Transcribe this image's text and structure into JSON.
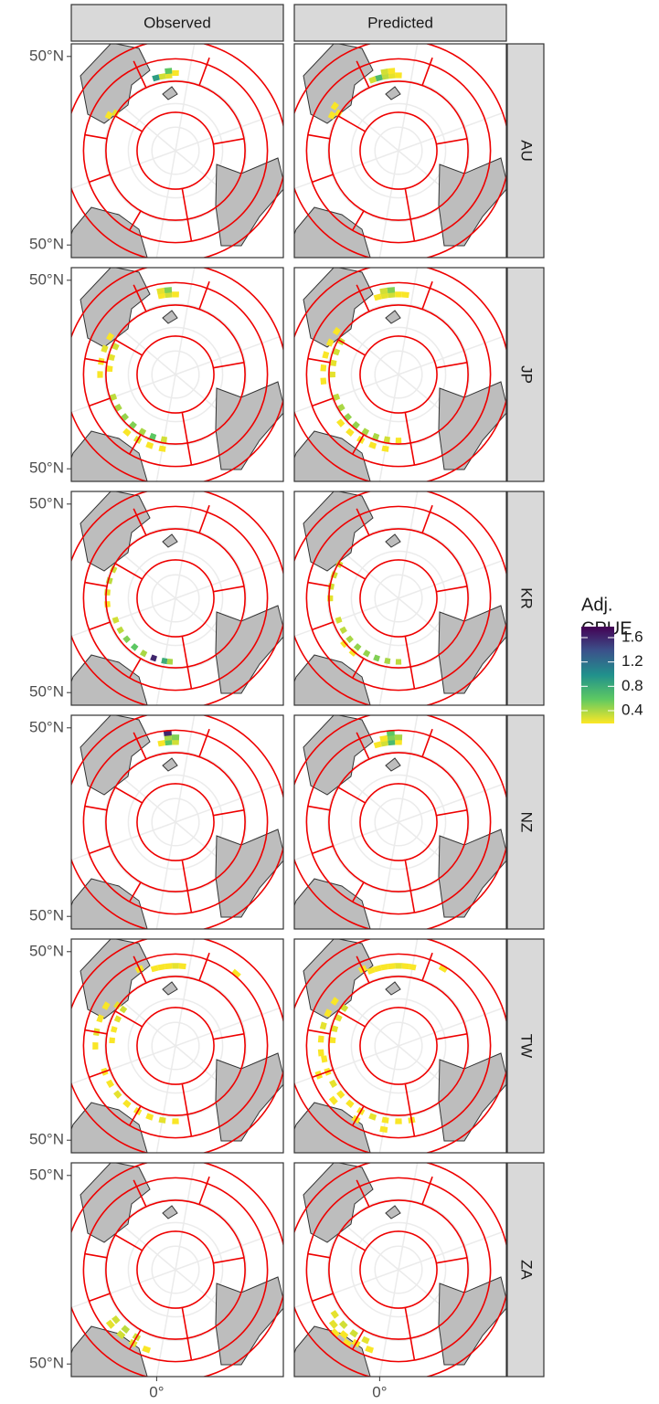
{
  "chart_data": {
    "type": "tile-map",
    "columns": [
      "Observed",
      "Predicted"
    ],
    "rows": [
      "AU",
      "JP",
      "KR",
      "NZ",
      "TW",
      "ZA"
    ],
    "xticks": [
      {
        "value": 0,
        "label": "0°"
      }
    ],
    "yticks": [
      {
        "value": 50,
        "label": "50°N"
      }
    ],
    "legend_title": [
      "Adj.",
      "CPUE"
    ],
    "clim": [
      0.19,
      1.78
    ],
    "cticks": [
      0.4,
      0.8,
      1.2,
      1.6
    ],
    "colors": [
      "#fde725",
      "#5ec962",
      "#21918c",
      "#3b528b",
      "#440154"
    ],
    "panels": [
      [
        {
          "lon": [
            195,
            200,
            205,
            190,
            195,
            252,
            248
          ],
          "lat": [
            58,
            58,
            58,
            57,
            56,
            58,
            60
          ],
          "values": [
            0.25,
            0.3,
            0.9,
            0.2,
            0.6,
            0.2,
            0.25
          ]
        },
        {
          "lon": [
            190,
            195,
            200,
            205,
            210,
            195,
            200,
            252,
            248,
            245
          ],
          "lat": [
            58,
            58,
            58,
            58,
            58,
            56,
            56,
            58,
            60,
            57
          ],
          "values": [
            0.2,
            0.25,
            0.35,
            0.7,
            0.3,
            0.2,
            0.3,
            0.2,
            0.2,
            0.2
          ]
        }
      ],
      [
        {
          "lon": [
            190,
            195,
            200,
            195,
            200,
            250,
            260,
            270,
            280,
            255,
            265,
            275,
            300,
            310,
            320,
            330,
            340,
            350,
            0,
            330,
            340,
            350,
            0
          ],
          "lat": [
            56,
            56,
            56,
            54,
            54,
            58,
            58,
            58,
            58,
            62,
            62,
            62,
            62,
            62,
            62,
            62,
            62,
            62,
            62,
            58,
            58,
            58,
            58
          ],
          "values": [
            0.2,
            0.3,
            0.2,
            0.5,
            0.25,
            0.2,
            0.25,
            0.2,
            0.2,
            0.3,
            0.25,
            0.2,
            0.35,
            0.4,
            0.45,
            0.5,
            0.4,
            0.6,
            0.3,
            0.2,
            0.25,
            0.2,
            0.2
          ]
        },
        {
          "lon": [
            185,
            190,
            195,
            200,
            205,
            195,
            200,
            245,
            255,
            265,
            275,
            285,
            250,
            260,
            270,
            280,
            300,
            310,
            320,
            330,
            340,
            350,
            0,
            10,
            320,
            330,
            340,
            350,
            0
          ],
          "lat": [
            56,
            56,
            56,
            56,
            56,
            54,
            54,
            58,
            58,
            58,
            58,
            58,
            62,
            62,
            62,
            62,
            62,
            62,
            62,
            62,
            62,
            62,
            62,
            62,
            58,
            58,
            58,
            58,
            58
          ],
          "values": [
            0.2,
            0.2,
            0.3,
            0.25,
            0.2,
            0.5,
            0.3,
            0.2,
            0.2,
            0.2,
            0.2,
            0.2,
            0.3,
            0.3,
            0.25,
            0.25,
            0.35,
            0.4,
            0.45,
            0.45,
            0.4,
            0.4,
            0.3,
            0.2,
            0.2,
            0.2,
            0.2,
            0.2,
            0.2
          ]
        }
      ],
      [
        {
          "lon": [
            255,
            265,
            275,
            285,
            300,
            310,
            320,
            330,
            340,
            350,
            0,
            5
          ],
          "lat": [
            61,
            61,
            61,
            61,
            63,
            63,
            63,
            63,
            63,
            63,
            63,
            63
          ],
          "values": [
            0.3,
            0.35,
            0.25,
            0.2,
            0.3,
            0.35,
            0.5,
            0.6,
            0.4,
            1.6,
            0.8,
            0.4
          ]
        },
        {
          "lon": [
            250,
            260,
            270,
            280,
            300,
            310,
            320,
            330,
            340,
            350,
            0,
            10,
            320,
            330
          ],
          "lat": [
            61,
            61,
            61,
            61,
            63,
            63,
            63,
            63,
            63,
            63,
            63,
            63,
            60,
            60
          ],
          "values": [
            0.3,
            0.3,
            0.3,
            0.25,
            0.3,
            0.35,
            0.4,
            0.45,
            0.45,
            0.5,
            0.4,
            0.35,
            0.2,
            0.2
          ]
        }
      ],
      [
        {
          "lon": [
            190,
            195,
            200,
            190,
            195,
            195
          ],
          "lat": [
            56,
            56,
            56,
            54,
            54,
            52
          ],
          "values": [
            0.3,
            0.6,
            0.2,
            0.5,
            0.4,
            1.6
          ]
        },
        {
          "lon": [
            190,
            195,
            200,
            205,
            190,
            195,
            200,
            195
          ],
          "lat": [
            56,
            56,
            56,
            56,
            54,
            54,
            54,
            52
          ],
          "values": [
            0.2,
            0.7,
            0.3,
            0.2,
            0.4,
            0.5,
            0.2,
            0.6
          ]
        }
      ],
      [
        {
          "lon": [
            185,
            190,
            195,
            200,
            205,
            215,
            245,
            250,
            260,
            270,
            280,
            245,
            255,
            265,
            275,
            300,
            310,
            320,
            330,
            340,
            350,
            0,
            10,
            150
          ],
          "lat": [
            56,
            56,
            56,
            56,
            56,
            54,
            60,
            56,
            56,
            56,
            56,
            63,
            63,
            63,
            63,
            58,
            58,
            58,
            58,
            58,
            58,
            58,
            58,
            50
          ],
          "values": [
            0.2,
            0.25,
            0.2,
            0.2,
            0.2,
            0.2,
            0.25,
            0.2,
            0.2,
            0.25,
            0.2,
            0.3,
            0.25,
            0.2,
            0.2,
            0.2,
            0.2,
            0.25,
            0.2,
            0.2,
            0.2,
            0.25,
            0.2,
            0.2
          ]
        },
        {
          "lon": [
            180,
            185,
            190,
            195,
            200,
            205,
            210,
            215,
            160,
            245,
            255,
            265,
            275,
            285,
            245,
            255,
            265,
            275,
            290,
            300,
            310,
            320,
            330,
            340,
            350,
            0,
            10,
            20,
            300,
            320,
            340,
            0
          ],
          "lat": [
            56,
            56,
            56,
            56,
            56,
            56,
            56,
            54,
            52,
            57,
            57,
            57,
            57,
            57,
            62,
            62,
            62,
            62,
            58,
            58,
            58,
            58,
            58,
            58,
            58,
            58,
            58,
            58,
            54,
            54,
            54,
            54
          ],
          "values": [
            0.2,
            0.2,
            0.25,
            0.2,
            0.2,
            0.2,
            0.2,
            0.2,
            0.2,
            0.2,
            0.2,
            0.25,
            0.2,
            0.2,
            0.3,
            0.25,
            0.25,
            0.2,
            0.2,
            0.2,
            0.25,
            0.2,
            0.2,
            0.2,
            0.25,
            0.2,
            0.2,
            0.2,
            0.2,
            0.2,
            0.2,
            0.2
          ]
        }
      ],
      [
        {
          "lon": [
            320,
            330,
            340,
            320,
            330,
            340,
            350
          ],
          "lat": [
            57,
            57,
            57,
            54,
            54,
            54,
            54
          ],
          "values": [
            0.3,
            0.35,
            0.3,
            0.25,
            0.3,
            0.25,
            0.2
          ]
        },
        {
          "lon": [
            315,
            325,
            335,
            345,
            320,
            330,
            340,
            350,
            325,
            335
          ],
          "lat": [
            57,
            57,
            57,
            57,
            54,
            54,
            54,
            54,
            52,
            52
          ],
          "values": [
            0.25,
            0.3,
            0.3,
            0.25,
            0.25,
            0.2,
            0.2,
            0.2,
            0.2,
            0.2
          ]
        }
      ]
    ]
  }
}
